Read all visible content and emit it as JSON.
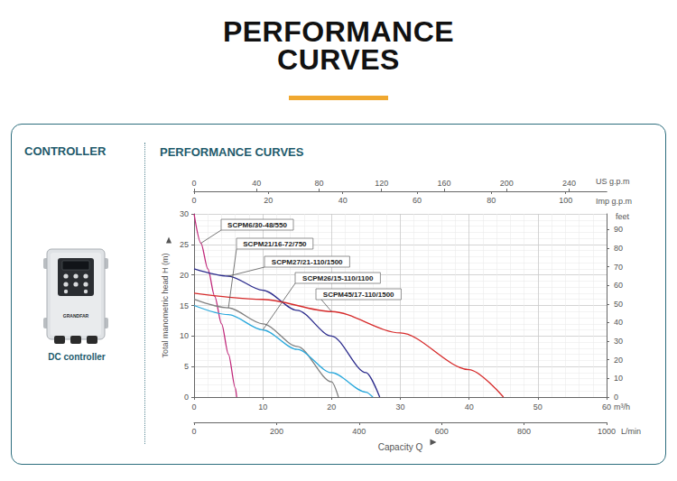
{
  "header": {
    "title": "PERFORMANCE CURVES"
  },
  "panel": {
    "left_heading": "CONTROLLER",
    "device_brand": "GRANDFAR",
    "device_caption": "DC controller",
    "right_heading": "PERFORMANCE CURVES"
  },
  "chart_data": {
    "type": "line",
    "xlabel": "Capacity Q",
    "x_unit": "m³/h",
    "ylabel": "Total manometric head H (m)",
    "xlim": [
      0,
      60
    ],
    "xticks": [
      0,
      10,
      20,
      30,
      40,
      50,
      60
    ],
    "ylim": [
      0,
      30
    ],
    "yticks": [
      0,
      5,
      10,
      15,
      20,
      25,
      30
    ],
    "x2label": "L/min",
    "x2lim": [
      0,
      1000
    ],
    "x2ticks": [
      0,
      200,
      400,
      600,
      800,
      1000
    ],
    "x3label": "US g.p.m",
    "x3lim": [
      0,
      264
    ],
    "x3ticks": [
      0,
      40,
      80,
      120,
      160,
      200,
      240
    ],
    "x4label": "Imp g.p.m",
    "x4lim": [
      0,
      111
    ],
    "x4ticks": [
      0,
      20,
      40,
      60,
      80,
      100
    ],
    "y2label": "feet",
    "y2lim": [
      0,
      98.4
    ],
    "y2ticks": [
      0,
      10,
      20,
      30,
      40,
      50,
      60,
      70,
      80,
      90
    ],
    "grid": true,
    "marker": "none",
    "line_style": "solid",
    "series": [
      {
        "name": "SCPM6/30-48/550",
        "color": "#c0287a",
        "x": [
          0,
          1,
          2,
          3,
          4,
          5,
          6,
          6.2
        ],
        "values": [
          30,
          25.2,
          21,
          16.5,
          12,
          7,
          1.5,
          0
        ]
      },
      {
        "name": "SCPM21/16-72/750",
        "color": "#808080",
        "x": [
          0,
          5,
          10,
          15,
          20,
          21
        ],
        "values": [
          16,
          14.6,
          12,
          8.3,
          2.5,
          0
        ]
      },
      {
        "name": "SCPM27/21-110/1500",
        "color": "#2b2b8c",
        "x": [
          0,
          5,
          10,
          15,
          20,
          25,
          27
        ],
        "values": [
          21,
          19.8,
          17.5,
          14.2,
          10,
          4,
          0
        ]
      },
      {
        "name": "SCPM26/15-110/1100",
        "color": "#29a8dc",
        "x": [
          0,
          5,
          10,
          15,
          20,
          25,
          26
        ],
        "values": [
          15,
          13.5,
          11,
          7.8,
          4,
          0.8,
          0
        ]
      },
      {
        "name": "SCPM45/17-110/1500",
        "color": "#d62a2a",
        "x": [
          0,
          10,
          20,
          30,
          40,
          45
        ],
        "values": [
          17,
          16,
          14,
          10.5,
          4.5,
          0
        ]
      }
    ]
  }
}
